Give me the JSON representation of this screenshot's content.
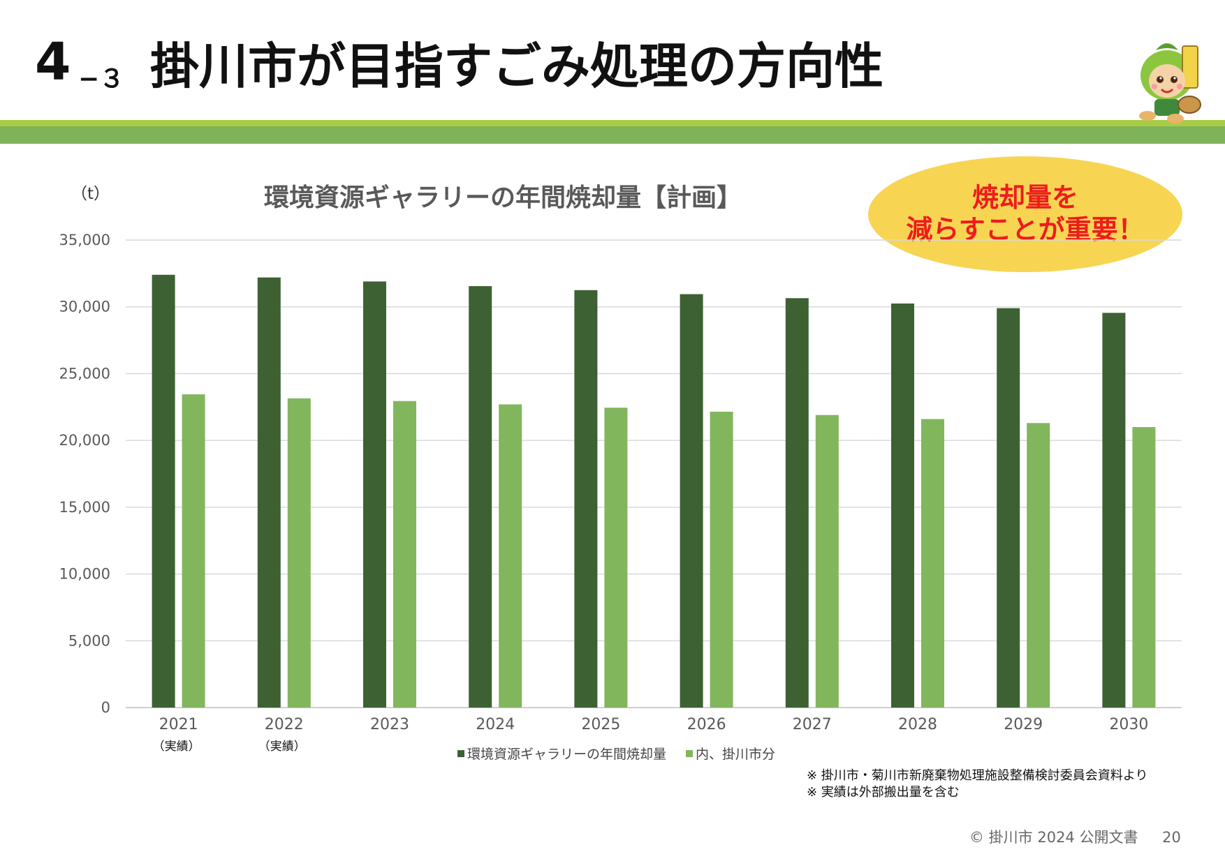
{
  "header": {
    "section_number": "4",
    "section_sub": "−３",
    "title": "掛川市が目指すごみ処理の方向性"
  },
  "colors": {
    "band_top": "#a8cc45",
    "band_main": "#7fb35a",
    "series_dark": "#3e6133",
    "series_light": "#82b65d",
    "callout_bg": "#f7d553",
    "callout_text": "#ee1c1c"
  },
  "mascot": {
    "icon": "mascot-character-icon"
  },
  "callout": {
    "line1": "焼却量を",
    "line2": "減らすことが重要！"
  },
  "chart_data": {
    "type": "bar",
    "title": "環境資源ギャラリーの年間焼却量【計画】",
    "unit_label": "（t）",
    "categories": [
      "2021",
      "2022",
      "2023",
      "2024",
      "2025",
      "2026",
      "2027",
      "2028",
      "2029",
      "2030"
    ],
    "category_notes": [
      "（実績）",
      "（実績）",
      "",
      "",
      "",
      "",
      "",
      "",
      "",
      ""
    ],
    "series": [
      {
        "name": "環境資源ギャラリーの年間焼却量",
        "color": "#3e6133",
        "values": [
          32400,
          32200,
          31900,
          31550,
          31250,
          30950,
          30650,
          30250,
          29900,
          29550
        ]
      },
      {
        "name": "内、掛川市分",
        "color": "#82b65d",
        "values": [
          23450,
          23150,
          22950,
          22700,
          22450,
          22150,
          21900,
          21600,
          21300,
          21000
        ]
      }
    ],
    "ylim": [
      0,
      35000
    ],
    "yticks": [
      0,
      5000,
      10000,
      15000,
      20000,
      25000,
      30000,
      35000
    ],
    "ytick_labels": [
      "0",
      "5,000",
      "10,000",
      "15,000",
      "20,000",
      "25,000",
      "30,000",
      "35,000"
    ],
    "grid": true,
    "legend_position": "bottom"
  },
  "legend": [
    {
      "marker": "■",
      "label": "環境資源ギャラリーの年間焼却量"
    },
    {
      "marker": "■",
      "label": "内、掛川市分"
    }
  ],
  "notes": [
    "※ 掛川市・菊川市新廃棄物処理施設整備検討委員会資料より",
    "※ 実績は外部搬出量を含む"
  ],
  "footer": {
    "copyright": "© 掛川市 2024 公開文書",
    "page_number": "20"
  }
}
